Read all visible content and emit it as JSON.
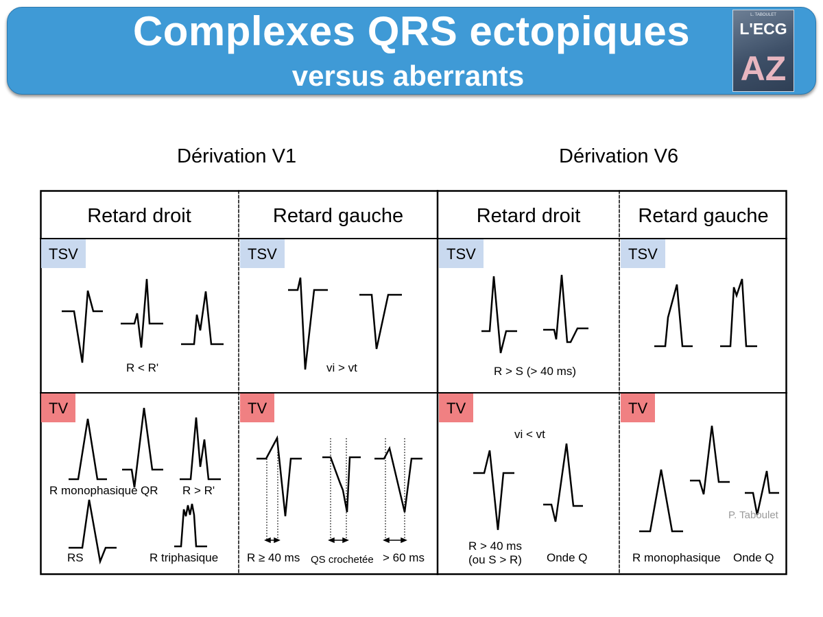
{
  "header": {
    "title": "Complexes QRS ectopiques",
    "subtitle": "versus aberrants",
    "logo_small": "L. TABOULET",
    "logo_ecg": "L'ECG",
    "logo_az": "AZ"
  },
  "derivations": {
    "v1": "Dérivation V1",
    "v6": "Dérivation V6"
  },
  "columns": {
    "v1_droit": "Retard droit",
    "v1_gauche": "Retard gauche",
    "v6_droit": "Retard droit",
    "v6_gauche": "Retard gauche"
  },
  "tags": {
    "tsv": "TSV",
    "tv": "TV"
  },
  "labels": {
    "v1_droit_tsv": "R < R'",
    "v1_gauche_tsv": "vi  > vt",
    "v6_droit_tsv": "R > S (> 40 ms)",
    "v1_droit_tv_mono": "R monophasique",
    "v1_droit_tv_qr": "QR",
    "v1_droit_tv_rr": "R > R'",
    "v1_droit_tv_rs": "RS",
    "v1_droit_tv_tri": "R triphasique",
    "v1_gauche_tv_r40": "R ≥ 40 ms",
    "v1_gauche_tv_qs": "QS crochetée",
    "v1_gauche_tv_60": "> 60 ms",
    "v6_droit_tv_vivt": "vi  < vt",
    "v6_droit_tv_r40a": "R > 40 ms",
    "v6_droit_tv_r40b": "(ou S > R)",
    "v6_droit_tv_ondeq": "Onde Q",
    "v6_gauche_tv_mono": "R monophasique",
    "v6_gauche_tv_ondeq": "Onde Q"
  },
  "credit": "P. Taboulet",
  "colors": {
    "banner": "#3f9ad6",
    "tsv_tag": "#c9d9ef",
    "tv_tag": "#f08082",
    "credit_text": "#9a9a9a"
  }
}
